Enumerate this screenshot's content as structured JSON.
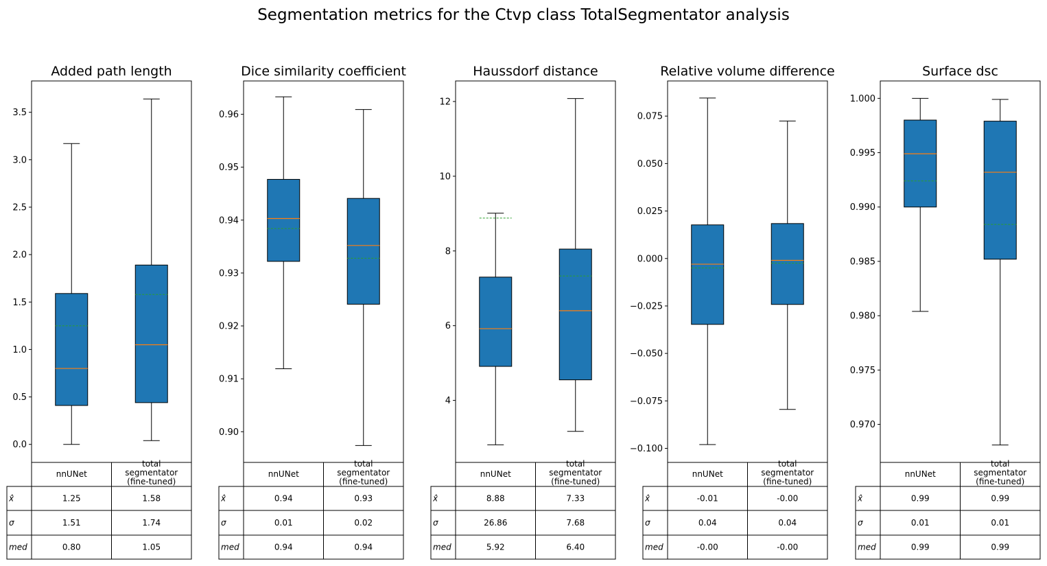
{
  "suptitle": "Segmentation metrics for the Ctvp class TotalSegmentator analysis",
  "colors": {
    "box": "#1f77b4",
    "median": "#ff7f0e",
    "mean": "#2ca02c"
  },
  "table": {
    "col_labels": [
      "nnUNet",
      "total\nsegmentator\n(fine-tuned)"
    ],
    "row_labels": [
      "x̂",
      "σ",
      "med"
    ]
  },
  "chart_data": [
    {
      "type": "box",
      "title": "Added path length",
      "series": [
        "nnUNet",
        "total segmentator (fine-tuned)"
      ],
      "ylim": [
        -0.19,
        3.83
      ],
      "yticks": [
        0.0,
        0.5,
        1.0,
        1.5,
        2.0,
        2.5,
        3.0,
        3.5
      ],
      "ytick_labels": [
        "0.0",
        "0.5",
        "1.0",
        "1.5",
        "2.0",
        "2.5",
        "3.0",
        "3.5"
      ],
      "boxes": [
        {
          "whislo": 0.0,
          "q1": 0.41,
          "med": 0.8,
          "q3": 1.59,
          "whishi": 3.17,
          "mean": 1.25
        },
        {
          "whislo": 0.04,
          "q1": 0.44,
          "med": 1.05,
          "q3": 1.89,
          "whishi": 3.64,
          "mean": 1.58
        }
      ],
      "table": [
        [
          "1.25",
          "1.58"
        ],
        [
          "1.51",
          "1.74"
        ],
        [
          "0.80",
          "1.05"
        ]
      ]
    },
    {
      "type": "box",
      "title": "Dice similarity coefficient",
      "series": [
        "nnUNet",
        "total segmentator (fine-tuned)"
      ],
      "ylim": [
        0.8942,
        0.9663
      ],
      "yticks": [
        0.9,
        0.91,
        0.92,
        0.93,
        0.94,
        0.95,
        0.96
      ],
      "ytick_labels": [
        "0.90",
        "0.91",
        "0.92",
        "0.93",
        "0.94",
        "0.95",
        "0.96"
      ],
      "boxes": [
        {
          "whislo": 0.9119,
          "q1": 0.9322,
          "med": 0.9403,
          "q3": 0.9477,
          "whishi": 0.9633,
          "mean": 0.9384
        },
        {
          "whislo": 0.8974,
          "q1": 0.9241,
          "med": 0.9352,
          "q3": 0.9441,
          "whishi": 0.9609,
          "mean": 0.9328
        }
      ],
      "table": [
        [
          "0.94",
          "0.93"
        ],
        [
          "0.01",
          "0.02"
        ],
        [
          "0.94",
          "0.94"
        ]
      ]
    },
    {
      "type": "box",
      "title": "Haussdorf distance",
      "series": [
        "nnUNet",
        "total segmentator (fine-tuned)"
      ],
      "ylim": [
        2.34,
        12.55
      ],
      "yticks": [
        4,
        6,
        8,
        10,
        12
      ],
      "ytick_labels": [
        "4",
        "6",
        "8",
        "10",
        "12"
      ],
      "boxes": [
        {
          "whislo": 2.81,
          "q1": 4.91,
          "med": 5.92,
          "q3": 7.3,
          "whishi": 9.01,
          "mean": 8.88
        },
        {
          "whislo": 3.17,
          "q1": 4.55,
          "med": 6.4,
          "q3": 8.05,
          "whishi": 12.08,
          "mean": 7.33
        }
      ],
      "table": [
        [
          "8.88",
          "7.33"
        ],
        [
          "26.86",
          "7.68"
        ],
        [
          "5.92",
          "6.40"
        ]
      ]
    },
    {
      "type": "box",
      "title": "Relative volume difference",
      "series": [
        "nnUNet",
        "total segmentator (fine-tuned)"
      ],
      "ylim": [
        -0.1074,
        0.0935
      ],
      "yticks": [
        -0.1,
        -0.075,
        -0.05,
        -0.025,
        0.0,
        0.025,
        0.05,
        0.075
      ],
      "ytick_labels": [
        "−0.100",
        "−0.075",
        "−0.050",
        "−0.025",
        "0.000",
        "0.025",
        "0.050",
        "0.075"
      ],
      "boxes": [
        {
          "whislo": -0.098,
          "q1": -0.0347,
          "med": -0.003,
          "q3": 0.0177,
          "whishi": 0.0845,
          "mean": -0.005
        },
        {
          "whislo": -0.0795,
          "q1": -0.0242,
          "med": -0.001,
          "q3": 0.0184,
          "whishi": 0.0724,
          "mean": -0.0025
        }
      ],
      "table": [
        [
          "-0.01",
          "-0.00"
        ],
        [
          "0.04",
          "0.04"
        ],
        [
          "-0.00",
          "-0.00"
        ]
      ]
    },
    {
      "type": "box",
      "title": "Surface dsc",
      "series": [
        "nnUNet",
        "total segmentator (fine-tuned)"
      ],
      "ylim": [
        0.9665,
        1.0016
      ],
      "yticks": [
        0.97,
        0.975,
        0.98,
        0.985,
        0.99,
        0.995,
        1.0
      ],
      "ytick_labels": [
        "0.970",
        "0.975",
        "0.980",
        "0.985",
        "0.990",
        "0.995",
        "1.000"
      ],
      "boxes": [
        {
          "whislo": 0.9804,
          "q1": 0.99,
          "med": 0.9949,
          "q3": 0.998,
          "whishi": 1.0,
          "mean": 0.9924
        },
        {
          "whislo": 0.9681,
          "q1": 0.9852,
          "med": 0.9932,
          "q3": 0.9979,
          "whishi": 0.9999,
          "mean": 0.9884
        }
      ],
      "table": [
        [
          "0.99",
          "0.99"
        ],
        [
          "0.01",
          "0.01"
        ],
        [
          "0.99",
          "0.99"
        ]
      ]
    }
  ]
}
